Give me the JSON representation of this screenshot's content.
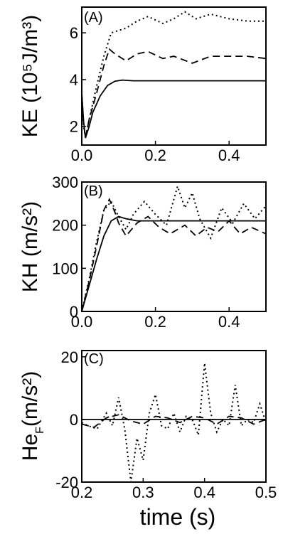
{
  "chart_data": [
    {
      "panel": "(A)",
      "type": "line",
      "ylabel": "KE (10⁵J/m³)",
      "xlim": [
        0,
        0.5
      ],
      "ylim": [
        1.2,
        7.1
      ],
      "xticks": [
        "0.0",
        "0.2",
        "0.4"
      ],
      "xtick_values": [
        0,
        0.2,
        0.4
      ],
      "yticks": [
        "2",
        "4",
        "6"
      ],
      "ytick_values": [
        2,
        4,
        6
      ],
      "series": [
        {
          "style": "solid",
          "x": [
            0,
            0.005,
            0.01,
            0.02,
            0.03,
            0.05,
            0.07,
            0.09,
            0.11,
            0.14,
            0.2,
            0.3,
            0.4,
            0.5
          ],
          "y": [
            3.4,
            2.2,
            1.5,
            2.0,
            2.6,
            3.3,
            3.75,
            3.93,
            3.98,
            3.95,
            3.95,
            3.95,
            3.95,
            3.95
          ]
        },
        {
          "style": "dashed",
          "x": [
            0,
            0.005,
            0.01,
            0.02,
            0.04,
            0.06,
            0.075,
            0.09,
            0.12,
            0.15,
            0.18,
            0.22,
            0.25,
            0.3,
            0.35,
            0.4,
            0.45,
            0.5
          ],
          "y": [
            3.4,
            2.1,
            1.5,
            2.3,
            3.4,
            4.6,
            5.3,
            5.1,
            4.8,
            5.1,
            5.2,
            4.9,
            5.0,
            4.7,
            5.0,
            5.0,
            5.0,
            4.9
          ]
        },
        {
          "style": "dotted",
          "x": [
            0,
            0.005,
            0.01,
            0.02,
            0.04,
            0.06,
            0.08,
            0.1,
            0.12,
            0.15,
            0.18,
            0.22,
            0.25,
            0.28,
            0.31,
            0.35,
            0.4,
            0.45,
            0.5
          ],
          "y": [
            3.4,
            2.0,
            1.5,
            2.3,
            3.7,
            5.0,
            6.0,
            6.1,
            6.2,
            6.5,
            6.7,
            6.4,
            6.6,
            6.9,
            6.6,
            6.8,
            6.6,
            6.5,
            6.5
          ]
        }
      ]
    },
    {
      "panel": "(B)",
      "type": "line",
      "ylabel": "KH (m/s²)",
      "xlim": [
        0,
        0.5
      ],
      "ylim": [
        0,
        300
      ],
      "xticks": [
        "0.0",
        "0.2",
        "0.4"
      ],
      "xtick_values": [
        0,
        0.2,
        0.4
      ],
      "yticks": [
        "0",
        "100",
        "200",
        "300"
      ],
      "ytick_values": [
        0,
        100,
        200,
        300
      ],
      "series": [
        {
          "style": "solid",
          "x": [
            0,
            0.02,
            0.04,
            0.06,
            0.08,
            0.1,
            0.12,
            0.15,
            0.2,
            0.3,
            0.4,
            0.5
          ],
          "y": [
            0,
            60,
            120,
            175,
            210,
            220,
            215,
            210,
            210,
            210,
            210,
            210
          ]
        },
        {
          "style": "dashed",
          "x": [
            0,
            0.02,
            0.04,
            0.06,
            0.075,
            0.09,
            0.1,
            0.12,
            0.15,
            0.18,
            0.21,
            0.24,
            0.28,
            0.31,
            0.34,
            0.37,
            0.4,
            0.43,
            0.46,
            0.5
          ],
          "y": [
            0,
            70,
            150,
            235,
            260,
            230,
            205,
            175,
            205,
            220,
            195,
            180,
            200,
            175,
            195,
            185,
            210,
            180,
            195,
            180
          ]
        },
        {
          "style": "dotted",
          "x": [
            0,
            0.02,
            0.04,
            0.06,
            0.08,
            0.1,
            0.12,
            0.14,
            0.17,
            0.2,
            0.23,
            0.26,
            0.28,
            0.3,
            0.32,
            0.35,
            0.38,
            0.41,
            0.44,
            0.47,
            0.5
          ],
          "y": [
            0,
            75,
            160,
            235,
            255,
            220,
            190,
            225,
            255,
            225,
            200,
            290,
            240,
            275,
            215,
            170,
            240,
            205,
            250,
            215,
            245
          ]
        }
      ]
    },
    {
      "panel": "(C)",
      "type": "line",
      "ylabel": "He_F(m/s²)",
      "xlabel": "time (s)",
      "xlim": [
        0.2,
        0.5
      ],
      "ylim": [
        -20,
        22
      ],
      "xticks": [
        "0.2",
        "0.3",
        "0.4",
        "0.5"
      ],
      "xtick_values": [
        0.2,
        0.3,
        0.4,
        0.5
      ],
      "yticks": [
        "-20",
        "0",
        "20"
      ],
      "ytick_values": [
        -20,
        0,
        20
      ],
      "series": [
        {
          "style": "solid",
          "x": [
            0.2,
            0.25,
            0.3,
            0.35,
            0.4,
            0.45,
            0.5
          ],
          "y": [
            0,
            0,
            0,
            0,
            0,
            0,
            0
          ]
        },
        {
          "style": "dashed",
          "x": [
            0.2,
            0.22,
            0.24,
            0.26,
            0.28,
            0.3,
            0.32,
            0.34,
            0.36,
            0.38,
            0.4,
            0.42,
            0.44,
            0.46,
            0.48,
            0.5
          ],
          "y": [
            -1.5,
            -2.5,
            0.5,
            1.5,
            -0.5,
            -1.5,
            1,
            0.5,
            -1,
            1,
            0.5,
            -1.5,
            1,
            0.5,
            -1.5,
            0
          ]
        },
        {
          "style": "dotted",
          "x": [
            0.2,
            0.21,
            0.225,
            0.24,
            0.25,
            0.26,
            0.27,
            0.28,
            0.29,
            0.3,
            0.31,
            0.32,
            0.33,
            0.34,
            0.35,
            0.36,
            0.37,
            0.38,
            0.39,
            0.4,
            0.41,
            0.42,
            0.43,
            0.44,
            0.45,
            0.46,
            0.47,
            0.48,
            0.49,
            0.5
          ],
          "y": [
            -1,
            -2,
            -3,
            2,
            -2,
            7,
            -3,
            -20,
            -6,
            -13,
            2,
            8,
            -2,
            -3,
            2,
            -4,
            1,
            0,
            -5,
            18,
            2,
            -4,
            0,
            -2,
            11,
            -2,
            0,
            -1,
            5,
            -1
          ]
        }
      ]
    }
  ]
}
